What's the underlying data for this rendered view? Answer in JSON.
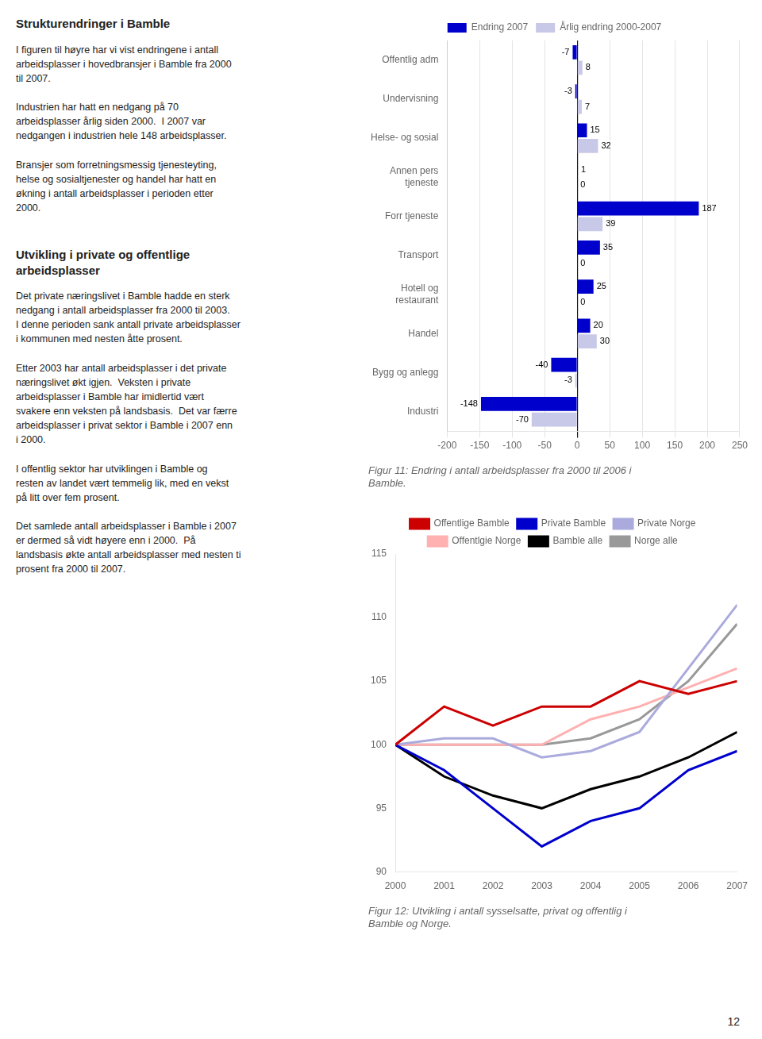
{
  "text_sections": [
    {
      "title": "Strukturendringer i Bamble",
      "body": "I figuren til høyre har vi vist endringene i antall\narbeidsplasser i hovedbransjer i Bamble fra 2000\ntil 2007.\n\nIndustrien har hatt en nedgang på 70\narbeidsplasser årlig siden 2000.  I 2007 var\nnedgangen i industrien hele 148 arbeidsplasser.\n\nBransjer som forretningsmessig tjenesteyting,\nhelse og sosialtjenester og handel har hatt en\nøkning i antall arbeidsplasser i perioden etter\n2000."
    },
    {
      "title": "Utvikling i private og offentlige\narbeidsplasser",
      "body": "Det private næringslivet i Bamble hadde en sterk\nnedgang i antall arbeidsplasser fra 2000 til 2003.\nI denne perioden sank antall private arbeidsplasser\ni kommunen med nesten åtte prosent.\n\nEtter 2003 har antall arbeidsplasser i det private\nnæringslivet økt igjen.  Veksten i private\narbeidsplasser i Bamble har imidlertid vært\nsvakere enn veksten på landsbasis.  Det var færre\narbeidsplasser i privat sektor i Bamble i 2007 enn\ni 2000.\n\nI offentlig sektor har utviklingen i Bamble og\nresten av landet vært temmelig lik, med en vekst\npå litt over fem prosent.\n\nDet samlede antall arbeidsplasser i Bamble i 2007\ner dermed så vidt høyere enn i 2000.  På\nlandsbasis økte antall arbeidsplasser med nesten ti\nprosent fra 2000 til 2007."
    }
  ],
  "page_number": 12,
  "chart_data": [
    {
      "type": "bar",
      "orientation": "horizontal",
      "title": "Figur 11: Endring i antall arbeidsplasser fra 2000 til 2006 i\nBamble.",
      "categories": [
        "Offentlig adm",
        "Undervisning",
        "Helse- og sosial",
        "Annen pers\ntjeneste",
        "Forr tjeneste",
        "Transport",
        "Hotell og\nrestaurant",
        "Handel",
        "Bygg og anlegg",
        "Industri"
      ],
      "series": [
        {
          "name": "Endring 2007",
          "color": "#0000CC",
          "values": [
            -7,
            -3,
            15,
            1,
            187,
            35,
            25,
            20,
            -40,
            -148
          ]
        },
        {
          "name": "Årlig endring 2000-2007",
          "color": "#C8C8E8",
          "values": [
            8,
            7,
            32,
            0,
            39,
            0,
            0,
            30,
            -3,
            -70
          ]
        }
      ],
      "xlim": [
        -200,
        250
      ],
      "xticks": [
        -200,
        -150,
        -100,
        -50,
        0,
        50,
        100,
        150,
        200,
        250
      ],
      "grid": true,
      "legend": "top",
      "data_labels": true
    },
    {
      "type": "line",
      "title": "Figur 12: Utvikling i antall sysselsatte, privat og offentlig i\nBamble og Norge.",
      "x": [
        2000,
        2001,
        2002,
        2003,
        2004,
        2005,
        2006,
        2007
      ],
      "series": [
        {
          "name": "Offentlige Bamble",
          "color": "#CC0000",
          "values": [
            100,
            103,
            101.5,
            103,
            103,
            105,
            104,
            105
          ]
        },
        {
          "name": "Private Bamble",
          "color": "#0000CC",
          "values": [
            100,
            98,
            95,
            92,
            94,
            95,
            98,
            99.5
          ]
        },
        {
          "name": "Private Norge",
          "color": "#AAAADD",
          "values": [
            100,
            100.5,
            100.5,
            99,
            99.5,
            101,
            106,
            111
          ]
        },
        {
          "name": "Offentlgie Norge",
          "color": "#FFB0B0",
          "values": [
            100,
            100,
            100,
            100,
            102,
            103,
            104.5,
            106
          ]
        },
        {
          "name": "Bamble alle",
          "color": "#000000",
          "values": [
            100,
            97.5,
            96,
            95,
            96.5,
            97.5,
            99,
            101
          ]
        },
        {
          "name": "Norge alle",
          "color": "#999999",
          "values": [
            100,
            100,
            100,
            100,
            100.5,
            102,
            105,
            109.5
          ]
        }
      ],
      "xlim": [
        2000,
        2007
      ],
      "xticks": [
        2000,
        2001,
        2002,
        2003,
        2004,
        2005,
        2006,
        2007
      ],
      "ylim": [
        90,
        115
      ],
      "yticks": [
        90,
        95,
        100,
        105,
        110,
        115
      ],
      "grid": false,
      "legend": "top"
    }
  ]
}
